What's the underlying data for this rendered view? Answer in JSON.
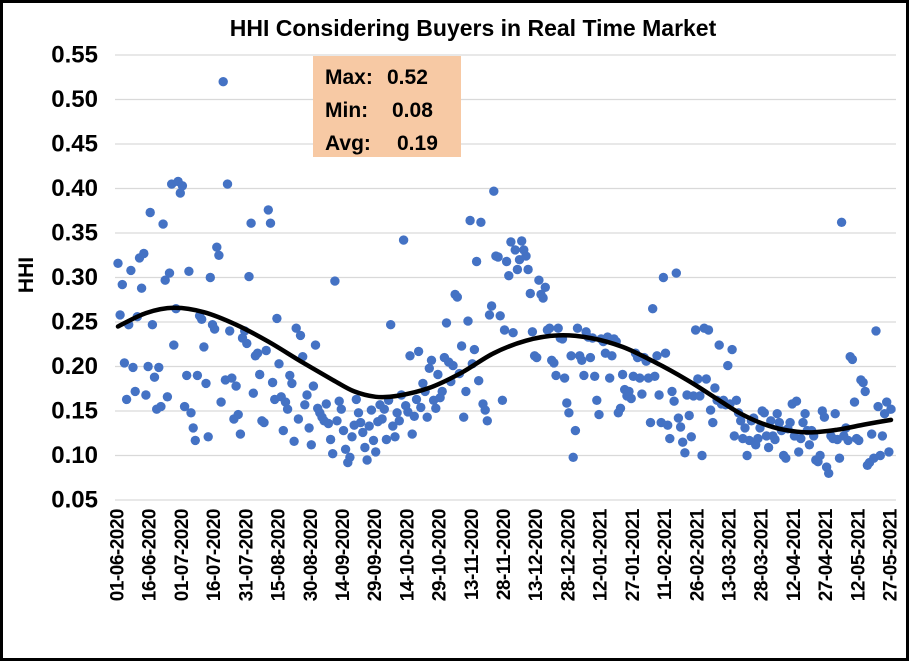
{
  "title": "HHI Considering Buyers in Real Time Market",
  "y_axis_title": "HHI",
  "annotation": {
    "bg_color": "#F7C9A4",
    "rows": [
      {
        "label": "Max:",
        "value": "0.52"
      },
      {
        "label": "Min:",
        "value": "0.08"
      },
      {
        "label": "Avg:",
        "value": "0.19"
      }
    ]
  },
  "chart_data": {
    "type": "scatter",
    "title": "HHI Considering Buyers in Real Time Market",
    "xlabel": "",
    "ylabel": "HHI",
    "ylim": [
      0.05,
      0.55
    ],
    "y_ticks": [
      "0.55",
      "0.50",
      "0.45",
      "0.40",
      "0.35",
      "0.30",
      "0.25",
      "0.20",
      "0.15",
      "0.10",
      "0.05"
    ],
    "grid": true,
    "legend_position": "none",
    "point_color": "#4472C4",
    "trend_color": "#000000",
    "gridline_color": "#D9D9D9",
    "stats": {
      "max": 0.52,
      "min": 0.08,
      "avg": 0.19
    },
    "x_start_date": "01-06-2020",
    "x_unit_days": 1,
    "x_tick_interval_days": 15,
    "x_tick_labels": [
      "01-06-2020",
      "16-06-2020",
      "01-07-2020",
      "16-07-2020",
      "31-07-2020",
      "15-08-2020",
      "30-08-2020",
      "14-09-2020",
      "29-09-2020",
      "14-10-2020",
      "29-10-2020",
      "13-11-2020",
      "28-11-2020",
      "13-12-2020",
      "28-12-2020",
      "12-01-2021",
      "27-01-2021",
      "11-02-2021",
      "26-02-2021",
      "13-03-2021",
      "28-03-2021",
      "12-04-2021",
      "27-04-2021",
      "12-05-2021",
      "27-05-2021"
    ],
    "values": [
      0.316,
      0.258,
      0.292,
      0.204,
      0.163,
      0.247,
      0.308,
      0.199,
      0.172,
      0.256,
      0.322,
      0.288,
      0.327,
      0.168,
      0.2,
      0.373,
      0.247,
      0.188,
      0.152,
      0.199,
      0.155,
      0.36,
      0.297,
      0.166,
      0.305,
      0.405,
      0.224,
      0.265,
      0.408,
      0.395,
      0.403,
      0.155,
      0.19,
      0.307,
      0.148,
      0.131,
      0.117,
      0.19,
      0.257,
      0.253,
      0.222,
      0.181,
      0.121,
      0.3,
      0.247,
      0.242,
      0.334,
      0.325,
      0.16,
      0.52,
      0.185,
      0.405,
      0.24,
      0.187,
      0.141,
      0.178,
      0.146,
      0.124,
      0.232,
      0.24,
      0.226,
      0.301,
      0.361,
      0.17,
      0.212,
      0.215,
      0.191,
      0.139,
      0.137,
      0.218,
      0.376,
      0.361,
      0.182,
      0.163,
      0.254,
      0.203,
      0.166,
      0.128,
      0.16,
      0.152,
      0.19,
      0.181,
      0.116,
      0.243,
      0.141,
      0.235,
      0.211,
      0.157,
      0.168,
      0.131,
      0.112,
      0.178,
      0.224,
      0.153,
      0.148,
      0.143,
      0.139,
      0.158,
      0.136,
      0.118,
      0.102,
      0.296,
      0.139,
      0.161,
      0.152,
      0.128,
      0.107,
      0.092,
      0.098,
      0.121,
      0.134,
      0.163,
      0.148,
      0.137,
      0.126,
      0.109,
      0.095,
      0.133,
      0.151,
      0.117,
      0.104,
      0.138,
      0.157,
      0.141,
      0.152,
      0.118,
      0.162,
      0.247,
      0.133,
      0.121,
      0.148,
      0.139,
      0.168,
      0.342,
      0.156,
      0.149,
      0.212,
      0.124,
      0.144,
      0.163,
      0.217,
      0.154,
      0.181,
      0.172,
      0.143,
      0.198,
      0.207,
      0.162,
      0.153,
      0.191,
      0.165,
      0.172,
      0.21,
      0.249,
      0.205,
      0.183,
      0.201,
      0.281,
      0.278,
      0.192,
      0.223,
      0.143,
      0.172,
      0.251,
      0.364,
      0.203,
      0.219,
      0.318,
      0.184,
      0.362,
      0.158,
      0.151,
      0.139,
      0.258,
      0.268,
      0.397,
      0.324,
      0.323,
      0.257,
      0.162,
      0.241,
      0.318,
      0.302,
      0.34,
      0.238,
      0.331,
      0.309,
      0.32,
      0.341,
      0.331,
      0.324,
      0.309,
      0.282,
      0.239,
      0.212,
      0.21,
      0.297,
      0.281,
      0.277,
      0.289,
      0.241,
      0.243,
      0.207,
      0.204,
      0.19,
      0.243,
      0.232,
      0.231,
      0.187,
      0.159,
      0.148,
      0.212,
      0.098,
      0.128,
      0.243,
      0.212,
      0.207,
      0.19,
      0.239,
      0.233,
      0.21,
      0.232,
      0.189,
      0.162,
      0.146,
      0.231,
      0.228,
      0.215,
      0.233,
      0.187,
      0.212,
      0.231,
      0.228,
      0.148,
      0.153,
      0.191,
      0.174,
      0.167,
      0.172,
      0.164,
      0.189,
      0.215,
      0.21,
      0.187,
      0.169,
      0.21,
      0.206,
      0.187,
      0.137,
      0.265,
      0.189,
      0.212,
      0.168,
      0.137,
      0.3,
      0.215,
      0.134,
      0.119,
      0.172,
      0.161,
      0.305,
      0.142,
      0.132,
      0.115,
      0.103,
      0.168,
      0.145,
      0.121,
      0.167,
      0.241,
      0.186,
      0.167,
      0.1,
      0.243,
      0.186,
      0.241,
      0.151,
      0.137,
      0.176,
      0.162,
      0.224,
      0.158,
      0.162,
      0.157,
      0.201,
      0.158,
      0.219,
      0.122,
      0.162,
      0.148,
      0.139,
      0.119,
      0.131,
      0.1,
      0.117,
      0.139,
      0.142,
      0.112,
      0.119,
      0.131,
      0.15,
      0.148,
      0.122,
      0.109,
      0.139,
      0.122,
      0.118,
      0.147,
      0.137,
      0.128,
      0.1,
      0.097,
      0.13,
      0.137,
      0.158,
      0.122,
      0.161,
      0.104,
      0.119,
      0.137,
      0.147,
      0.128,
      0.112,
      0.128,
      0.122,
      0.095,
      0.093,
      0.1,
      0.15,
      0.143,
      0.087,
      0.08,
      0.122,
      0.119,
      0.147,
      0.118,
      0.097,
      0.362,
      0.122,
      0.131,
      0.117,
      0.211,
      0.208,
      0.16,
      0.119,
      0.117,
      0.185,
      0.182,
      0.172,
      0.089,
      0.092,
      0.124,
      0.097,
      0.24,
      0.155,
      0.1,
      0.122,
      0.147,
      0.16,
      0.104,
      0.152
    ],
    "trend_line": {
      "name": "smoothed-trend",
      "points": [
        [
          0,
          0.245
        ],
        [
          13,
          0.26
        ],
        [
          26,
          0.266
        ],
        [
          40,
          0.261
        ],
        [
          55,
          0.247
        ],
        [
          70,
          0.228
        ],
        [
          85,
          0.206
        ],
        [
          100,
          0.185
        ],
        [
          110,
          0.172
        ],
        [
          120,
          0.166
        ],
        [
          130,
          0.167
        ],
        [
          145,
          0.176
        ],
        [
          160,
          0.193
        ],
        [
          175,
          0.215
        ],
        [
          190,
          0.229
        ],
        [
          205,
          0.235
        ],
        [
          220,
          0.232
        ],
        [
          235,
          0.222
        ],
        [
          250,
          0.205
        ],
        [
          265,
          0.185
        ],
        [
          280,
          0.162
        ],
        [
          290,
          0.147
        ],
        [
          300,
          0.136
        ],
        [
          310,
          0.129
        ],
        [
          322,
          0.126
        ],
        [
          335,
          0.129
        ],
        [
          348,
          0.135
        ],
        [
          360,
          0.14
        ]
      ]
    }
  }
}
